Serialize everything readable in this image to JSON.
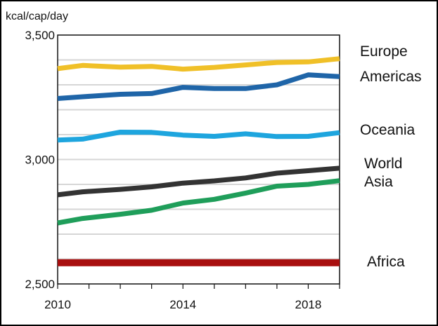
{
  "chart_data": {
    "type": "line",
    "title": "",
    "ylabel": "kcal/cap/day",
    "xlabel": "",
    "xlim": [
      2010,
      2019
    ],
    "ylim": [
      2500,
      3500
    ],
    "x_ticks": [
      2010,
      2011,
      2012,
      2013,
      2014,
      2015,
      2016,
      2017,
      2018,
      2019
    ],
    "x_tick_labels": [
      {
        "value": 2010,
        "label": "2010"
      },
      {
        "value": 2014,
        "label": "2014"
      },
      {
        "value": 2018,
        "label": "2018"
      }
    ],
    "y_tick_labels": [
      {
        "value": 3500,
        "label": "3,500"
      },
      {
        "value": 3000,
        "label": "3,000"
      },
      {
        "value": 2500,
        "label": "2,500"
      }
    ],
    "gridlines": [
      2600,
      2700,
      2800,
      2900,
      3000,
      3100,
      3200,
      3300,
      3400
    ],
    "x": [
      2010,
      2010.8,
      2012,
      2013,
      2014,
      2015,
      2016,
      2017,
      2018,
      2019
    ],
    "series": [
      {
        "name": "Europe",
        "color": "#f0c028",
        "label_lines": [
          "Europe"
        ],
        "values": [
          3365,
          3378,
          3371,
          3374,
          3363,
          3370,
          3380,
          3390,
          3392,
          3405
        ]
      },
      {
        "name": "Americas",
        "color": "#1f65a8",
        "label_lines": [
          "Americas"
        ],
        "values": [
          3245,
          3252,
          3262,
          3265,
          3290,
          3285,
          3285,
          3300,
          3340,
          3333
        ]
      },
      {
        "name": "Oceania",
        "color": "#1ea5de",
        "label_lines": [
          "Oceania"
        ],
        "values": [
          3078,
          3082,
          3110,
          3109,
          3098,
          3093,
          3103,
          3092,
          3093,
          3108
        ]
      },
      {
        "name": "World",
        "color": "#333333",
        "label_lines": [
          "World"
        ],
        "values": [
          2858,
          2870,
          2880,
          2890,
          2905,
          2914,
          2926,
          2945,
          2955,
          2965
        ]
      },
      {
        "name": "Asia",
        "color": "#1f9e5a",
        "label_lines": [
          "Asia"
        ],
        "values": [
          2745,
          2763,
          2780,
          2796,
          2825,
          2840,
          2865,
          2893,
          2900,
          2915
        ]
      },
      {
        "name": "Africa",
        "color": "#a80f0f",
        "label_lines": [
          "Africa"
        ],
        "values": [
          2585,
          2585,
          2585,
          2585,
          2585,
          2585,
          2585,
          2585,
          2585,
          2585
        ]
      }
    ]
  }
}
